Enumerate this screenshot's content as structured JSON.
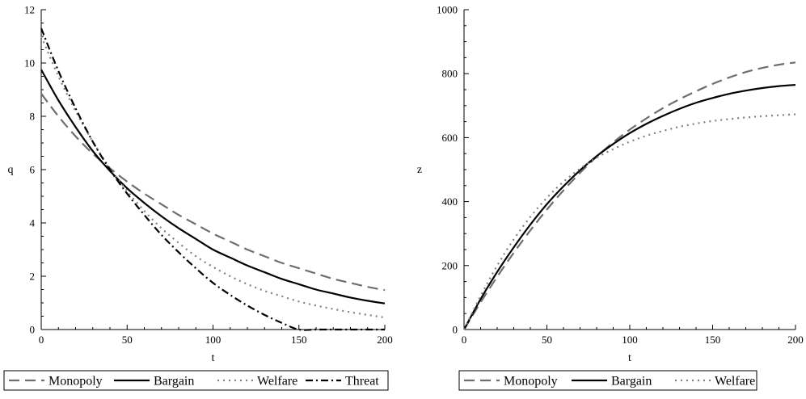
{
  "chart_data": [
    {
      "type": "line",
      "title": "",
      "xlabel": "t",
      "ylabel": "q",
      "xlim": [
        0,
        200
      ],
      "ylim": [
        0,
        12
      ],
      "xticks": [
        0,
        50,
        100,
        150,
        200
      ],
      "yticks": [
        0,
        2,
        4,
        6,
        8,
        10,
        12
      ],
      "grid": false,
      "legend": "bottom",
      "x": [
        0,
        10,
        20,
        30,
        40,
        50,
        60,
        70,
        80,
        90,
        100,
        110,
        120,
        130,
        140,
        150,
        160,
        170,
        180,
        190,
        200
      ],
      "series": [
        {
          "name": "Monopoly",
          "style": "dashed",
          "color": "#6e6e6e",
          "values": [
            8.85,
            8.0,
            7.25,
            6.6,
            6.05,
            5.55,
            5.1,
            4.7,
            4.3,
            3.95,
            3.6,
            3.3,
            3.0,
            2.75,
            2.5,
            2.3,
            2.1,
            1.9,
            1.75,
            1.6,
            1.48
          ]
        },
        {
          "name": "Bargain",
          "style": "solid",
          "color": "#000000",
          "values": [
            9.75,
            8.6,
            7.6,
            6.7,
            5.95,
            5.3,
            4.75,
            4.25,
            3.8,
            3.4,
            3.0,
            2.7,
            2.4,
            2.15,
            1.9,
            1.7,
            1.5,
            1.35,
            1.2,
            1.08,
            0.98
          ]
        },
        {
          "name": "Welfare",
          "style": "dotted",
          "color": "#808080",
          "values": [
            11.0,
            9.5,
            8.2,
            7.05,
            6.05,
            5.2,
            4.45,
            3.8,
            3.25,
            2.75,
            2.35,
            2.0,
            1.7,
            1.45,
            1.25,
            1.05,
            0.9,
            0.77,
            0.65,
            0.55,
            0.45
          ]
        },
        {
          "name": "Threat",
          "style": "dashdot",
          "color": "#000000",
          "values": [
            11.3,
            9.7,
            8.3,
            7.05,
            6.0,
            5.1,
            4.3,
            3.55,
            2.9,
            2.3,
            1.75,
            1.3,
            0.9,
            0.55,
            0.25,
            0.0,
            0.0,
            0.0,
            0.0,
            0.0,
            0.0
          ]
        }
      ]
    },
    {
      "type": "line",
      "title": "",
      "xlabel": "t",
      "ylabel": "z",
      "xlim": [
        0,
        200
      ],
      "ylim": [
        0,
        1000
      ],
      "xticks": [
        0,
        50,
        100,
        150,
        200
      ],
      "yticks": [
        0,
        200,
        400,
        600,
        800,
        1000
      ],
      "grid": false,
      "legend": "bottom",
      "x": [
        0,
        10,
        20,
        30,
        40,
        50,
        60,
        70,
        80,
        90,
        100,
        110,
        120,
        130,
        140,
        150,
        160,
        170,
        180,
        190,
        200
      ],
      "series": [
        {
          "name": "Monopoly",
          "style": "dashed",
          "color": "#6e6e6e",
          "values": [
            0,
            85,
            165,
            240,
            310,
            375,
            435,
            490,
            540,
            585,
            625,
            660,
            692,
            720,
            745,
            768,
            788,
            805,
            818,
            828,
            835
          ]
        },
        {
          "name": "Bargain",
          "style": "solid",
          "color": "#000000",
          "values": [
            0,
            95,
            180,
            257,
            328,
            392,
            448,
            498,
            542,
            580,
            614,
            643,
            668,
            690,
            709,
            724,
            737,
            747,
            755,
            761,
            765
          ]
        },
        {
          "name": "Welfare",
          "style": "dotted",
          "color": "#808080",
          "values": [
            0,
            105,
            200,
            282,
            352,
            412,
            462,
            503,
            537,
            564,
            587,
            606,
            621,
            634,
            644,
            652,
            658,
            663,
            667,
            670,
            673
          ]
        }
      ]
    }
  ]
}
